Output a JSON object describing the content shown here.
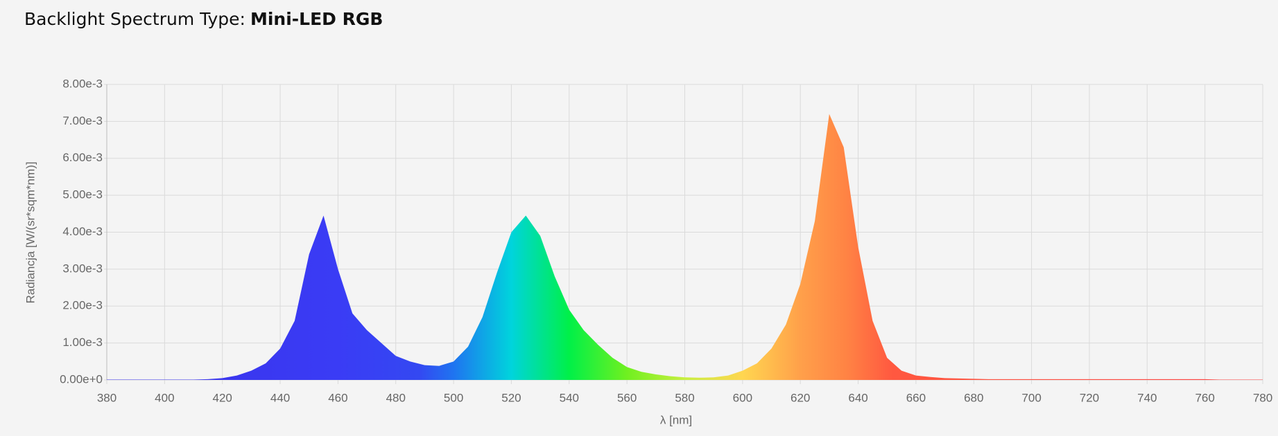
{
  "chart_data": {
    "type": "area",
    "title_prefix": "Backlight Spectrum Type:",
    "title_emphasis": "Mini-LED RGB",
    "x_label": "λ [nm]",
    "y_label": "Radiancja [W/(sr*sqm*nm)]",
    "x": [
      380,
      385,
      390,
      395,
      400,
      405,
      410,
      415,
      420,
      425,
      430,
      435,
      440,
      445,
      450,
      455,
      460,
      465,
      470,
      475,
      480,
      485,
      490,
      495,
      500,
      505,
      510,
      515,
      520,
      525,
      530,
      535,
      540,
      545,
      550,
      555,
      560,
      565,
      570,
      575,
      580,
      585,
      590,
      595,
      600,
      605,
      610,
      615,
      620,
      625,
      630,
      635,
      640,
      645,
      650,
      655,
      660,
      665,
      670,
      675,
      680,
      685,
      690,
      695,
      700,
      705,
      710,
      715,
      720,
      725,
      730,
      735,
      740,
      745,
      750,
      755,
      760,
      765,
      770,
      775,
      780
    ],
    "values": [
      1e-05,
      1e-05,
      1e-05,
      1e-05,
      1e-05,
      1e-05,
      1e-05,
      2e-05,
      5e-05,
      0.00012,
      0.00025,
      0.00045,
      0.00085,
      0.0016,
      0.0034,
      0.00445,
      0.003,
      0.0018,
      0.00135,
      0.001,
      0.00065,
      0.0005,
      0.0004,
      0.00038,
      0.0005,
      0.0009,
      0.0017,
      0.0029,
      0.004,
      0.00445,
      0.0039,
      0.0028,
      0.0019,
      0.00135,
      0.00095,
      0.0006,
      0.00035,
      0.00022,
      0.00015,
      0.0001,
      7e-05,
      6e-05,
      7e-05,
      0.00012,
      0.00025,
      0.00045,
      0.00085,
      0.0015,
      0.0026,
      0.0043,
      0.0072,
      0.0063,
      0.0036,
      0.0016,
      0.0006,
      0.00025,
      0.00012,
      8e-05,
      5e-05,
      4e-05,
      3e-05,
      2e-05,
      2e-05,
      2e-05,
      2e-05,
      2e-05,
      2e-05,
      2e-05,
      2e-05,
      2e-05,
      2e-05,
      2e-05,
      2e-05,
      2e-05,
      2e-05,
      2e-05,
      2e-05,
      1e-05,
      1e-05,
      1e-05,
      1e-05
    ],
    "xlim": [
      380,
      780
    ],
    "xticks": [
      380,
      400,
      420,
      440,
      460,
      480,
      500,
      520,
      540,
      560,
      580,
      600,
      620,
      640,
      660,
      680,
      700,
      720,
      740,
      760,
      780
    ],
    "ylim": [
      0,
      0.008
    ],
    "yticks": [
      {
        "value": 0,
        "label": "0.00e+0"
      },
      {
        "value": 0.001,
        "label": "1.00e-3"
      },
      {
        "value": 0.002,
        "label": "2.00e-3"
      },
      {
        "value": 0.003,
        "label": "3.00e-3"
      },
      {
        "value": 0.004,
        "label": "4.00e-3"
      },
      {
        "value": 0.005,
        "label": "5.00e-3"
      },
      {
        "value": 0.006,
        "label": "6.00e-3"
      },
      {
        "value": 0.007,
        "label": "7.00e-3"
      },
      {
        "value": 0.008,
        "label": "8.00e-3"
      }
    ],
    "grid": true
  }
}
